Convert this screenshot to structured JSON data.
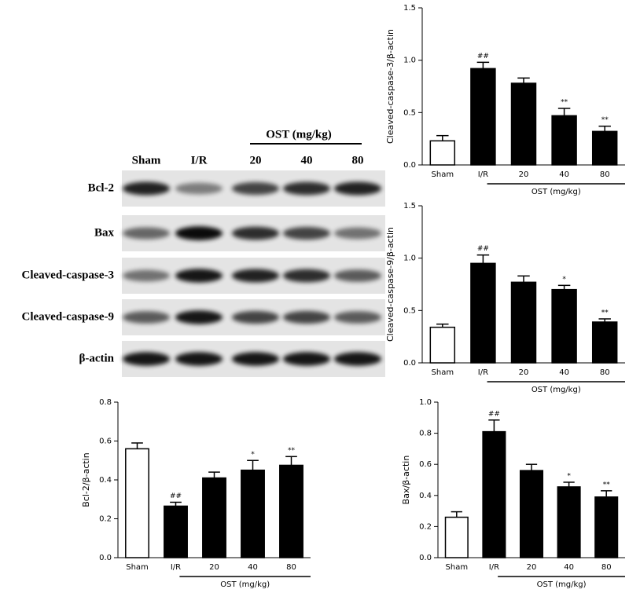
{
  "blot": {
    "group_label": "OST (mg/kg)",
    "lanes": [
      "Sham",
      "I/R",
      "20",
      "40",
      "80"
    ],
    "rows": [
      "Bcl-2",
      "Bax",
      "Cleaved-caspase-3",
      "Cleaved-caspase-9",
      "β-actin"
    ]
  },
  "chart_data": [
    {
      "type": "bar",
      "y_label": "Cleaved-caspase-3/β-actin",
      "group_label": "OST (mg/kg)",
      "categories": [
        "Sham",
        "I/R",
        "20",
        "40",
        "80"
      ],
      "values": [
        0.23,
        0.92,
        0.78,
        0.47,
        0.32
      ],
      "errors": [
        0.05,
        0.06,
        0.05,
        0.07,
        0.05
      ],
      "annotations": [
        null,
        "##",
        null,
        "**",
        "**"
      ],
      "colors": [
        "#ffffff",
        "#000000",
        "#000000",
        "#000000",
        "#000000"
      ],
      "ylim": [
        0,
        1.5
      ],
      "yticks": [
        {
          "value": 0,
          "label": "0.0"
        },
        0.5,
        {
          "value": 1,
          "label": "1.0"
        },
        1.5
      ]
    },
    {
      "type": "bar",
      "y_label": "Cleaved-caspase-9/β-actin",
      "group_label": "OST (mg/kg)",
      "categories": [
        "Sham",
        "I/R",
        "20",
        "40",
        "80"
      ],
      "values": [
        0.34,
        0.95,
        0.77,
        0.7,
        0.39
      ],
      "errors": [
        0.03,
        0.08,
        0.06,
        0.04,
        0.03
      ],
      "annotations": [
        null,
        "##",
        null,
        "*",
        "**"
      ],
      "colors": [
        "#ffffff",
        "#000000",
        "#000000",
        "#000000",
        "#000000"
      ],
      "ylim": [
        0,
        1.5
      ],
      "yticks": [
        {
          "value": 0,
          "label": "0.0"
        },
        0.5,
        {
          "value": 1,
          "label": "1.0"
        },
        1.5
      ]
    },
    {
      "type": "bar",
      "y_label": "Bcl-2/β-actin",
      "group_label": "OST (mg/kg)",
      "categories": [
        "Sham",
        "I/R",
        "20",
        "40",
        "80"
      ],
      "values": [
        0.56,
        0.265,
        0.41,
        0.45,
        0.475
      ],
      "errors": [
        0.03,
        0.02,
        0.03,
        0.05,
        0.045
      ],
      "annotations": [
        null,
        "##",
        null,
        "*",
        "**"
      ],
      "colors": [
        "#ffffff",
        "#000000",
        "#000000",
        "#000000",
        "#000000"
      ],
      "ylim": [
        0,
        0.8
      ],
      "yticks": [
        {
          "value": 0,
          "label": "0.0"
        },
        0.2,
        0.4,
        0.6,
        0.8
      ]
    },
    {
      "type": "bar",
      "y_label": "Bax/β-actin",
      "group_label": "OST (mg/kg)",
      "categories": [
        "Sham",
        "I/R",
        "20",
        "40",
        "80"
      ],
      "values": [
        0.26,
        0.81,
        0.56,
        0.455,
        0.39
      ],
      "errors": [
        0.035,
        0.075,
        0.04,
        0.03,
        0.04
      ],
      "annotations": [
        null,
        "##",
        null,
        "*",
        "**"
      ],
      "colors": [
        "#ffffff",
        "#000000",
        "#000000",
        "#000000",
        "#000000"
      ],
      "ylim": [
        0,
        1
      ],
      "yticks": [
        {
          "value": 0,
          "label": "0.0"
        },
        0.2,
        0.4,
        0.6,
        0.8,
        {
          "value": 1,
          "label": "1.0"
        }
      ]
    }
  ]
}
